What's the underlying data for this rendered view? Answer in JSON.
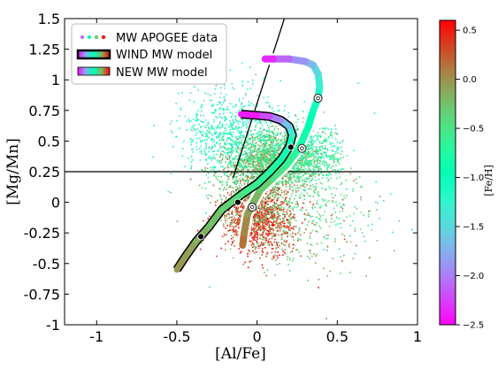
{
  "chart_data": {
    "type": "scatter",
    "xlabel": "[Al/Fe]",
    "ylabel": "[Mg/Mn]",
    "xlim": [
      -1.2,
      1.0
    ],
    "ylim": [
      -1.0,
      1.5
    ],
    "xticks": [
      {
        "v": -1.0,
        "label": "-1"
      },
      {
        "v": -0.5,
        "label": "-0.5"
      },
      {
        "v": 0.0,
        "label": "0"
      },
      {
        "v": 0.5,
        "label": "0.5"
      },
      {
        "v": 1.0,
        "label": "1"
      }
    ],
    "yticks": [
      {
        "v": -1.0,
        "label": "-1"
      },
      {
        "v": -0.75,
        "label": "-0.75"
      },
      {
        "v": -0.5,
        "label": "-0.5"
      },
      {
        "v": -0.25,
        "label": "-0.25"
      },
      {
        "v": 0.0,
        "label": "0"
      },
      {
        "v": 0.25,
        "label": "0.25"
      },
      {
        "v": 0.5,
        "label": "0.5"
      },
      {
        "v": 0.75,
        "label": "0.75"
      },
      {
        "v": 1.0,
        "label": "1"
      },
      {
        "v": 1.25,
        "label": "1.25"
      },
      {
        "v": 1.5,
        "label": "1.5"
      }
    ],
    "grid": false,
    "legend_position": "top-left",
    "legend": [
      {
        "label": "MW APOGEE data",
        "marker": "dots"
      },
      {
        "label": "WIND MW model",
        "marker": "black-outlined band"
      },
      {
        "label": "NEW MW model",
        "marker": "white-outlined band"
      }
    ],
    "colorbar": {
      "label": "[Fe/H]",
      "range": [
        -2.5,
        0.6
      ],
      "ticks": [
        {
          "v": 0.5,
          "label": "0.5"
        },
        {
          "v": 0.0,
          "label": "0.0"
        },
        {
          "v": -0.5,
          "label": "−0.5"
        },
        {
          "v": -1.0,
          "label": "−1.0"
        },
        {
          "v": -1.5,
          "label": "−1.5"
        },
        {
          "v": -2.0,
          "label": "−2.0"
        },
        {
          "v": -2.5,
          "label": "−2.5"
        }
      ],
      "colormap": "rainbow"
    },
    "reference_lines": [
      {
        "type": "horizontal",
        "y": 0.25
      },
      {
        "type": "line",
        "points": [
          [
            -0.15,
            0.2
          ],
          [
            0.17,
            1.5
          ]
        ]
      }
    ],
    "series": [
      {
        "name": "MW APOGEE data",
        "kind": "point cloud",
        "clouds": [
          {
            "center": [
              0.08,
              0.35
            ],
            "spread": [
              0.16,
              0.13
            ],
            "feh": -0.3,
            "n": 1700,
            "angle": 30
          },
          {
            "center": [
              0.0,
              -0.12
            ],
            "spread": [
              0.11,
              0.13
            ],
            "feh": 0.25,
            "n": 1300,
            "angle": 10
          },
          {
            "center": [
              -0.2,
              0.58
            ],
            "spread": [
              0.14,
              0.17
            ],
            "feh": -1.1,
            "n": 600,
            "angle": 0
          },
          {
            "center": [
              0.3,
              0.38
            ],
            "spread": [
              0.12,
              0.1
            ],
            "feh": -0.7,
            "n": 500,
            "angle": 20
          },
          {
            "center": [
              0.2,
              0.1
            ],
            "spread": [
              0.24,
              0.32
            ],
            "feh": -0.5,
            "n": 800,
            "angle": 25
          }
        ]
      },
      {
        "name": "WIND MW model",
        "x": [
          -0.5,
          -0.45,
          -0.38,
          -0.3,
          -0.22,
          -0.14,
          -0.08,
          0.0,
          0.08,
          0.15,
          0.2,
          0.22,
          0.2,
          0.15,
          0.08,
          0.0,
          -0.1
        ],
        "y": [
          -0.55,
          -0.45,
          -0.32,
          -0.2,
          -0.06,
          0.02,
          0.08,
          0.15,
          0.25,
          0.35,
          0.45,
          0.55,
          0.62,
          0.67,
          0.7,
          0.71,
          0.72
        ],
        "feh": [
          0.0,
          -0.05,
          -0.1,
          -0.2,
          -0.3,
          -0.4,
          -0.5,
          -0.6,
          -0.7,
          -0.8,
          -0.9,
          -1.2,
          -1.5,
          -1.8,
          -2.1,
          -2.3,
          -2.5
        ],
        "markers": [
          [
            -0.35,
            -0.28
          ],
          [
            -0.12,
            0.0
          ],
          [
            0.21,
            0.45
          ]
        ]
      },
      {
        "name": "NEW MW model",
        "x": [
          -0.09,
          -0.08,
          -0.06,
          -0.03,
          0.02,
          0.1,
          0.18,
          0.24,
          0.28,
          0.32,
          0.35,
          0.38,
          0.39,
          0.38,
          0.35,
          0.3,
          0.2,
          0.1,
          0.05
        ],
        "y": [
          -0.35,
          -0.25,
          -0.1,
          -0.02,
          0.1,
          0.2,
          0.3,
          0.4,
          0.5,
          0.62,
          0.75,
          0.85,
          0.95,
          1.05,
          1.12,
          1.15,
          1.17,
          1.17,
          1.17
        ],
        "feh": [
          0.2,
          0.1,
          0.0,
          -0.1,
          -0.25,
          -0.4,
          -0.55,
          -0.7,
          -0.8,
          -0.9,
          -1.0,
          -1.1,
          -1.25,
          -1.4,
          -1.6,
          -1.8,
          -2.0,
          -2.2,
          -2.5
        ],
        "markers": [
          [
            -0.03,
            -0.04
          ],
          [
            0.28,
            0.44
          ],
          [
            0.38,
            0.85
          ]
        ]
      }
    ]
  }
}
